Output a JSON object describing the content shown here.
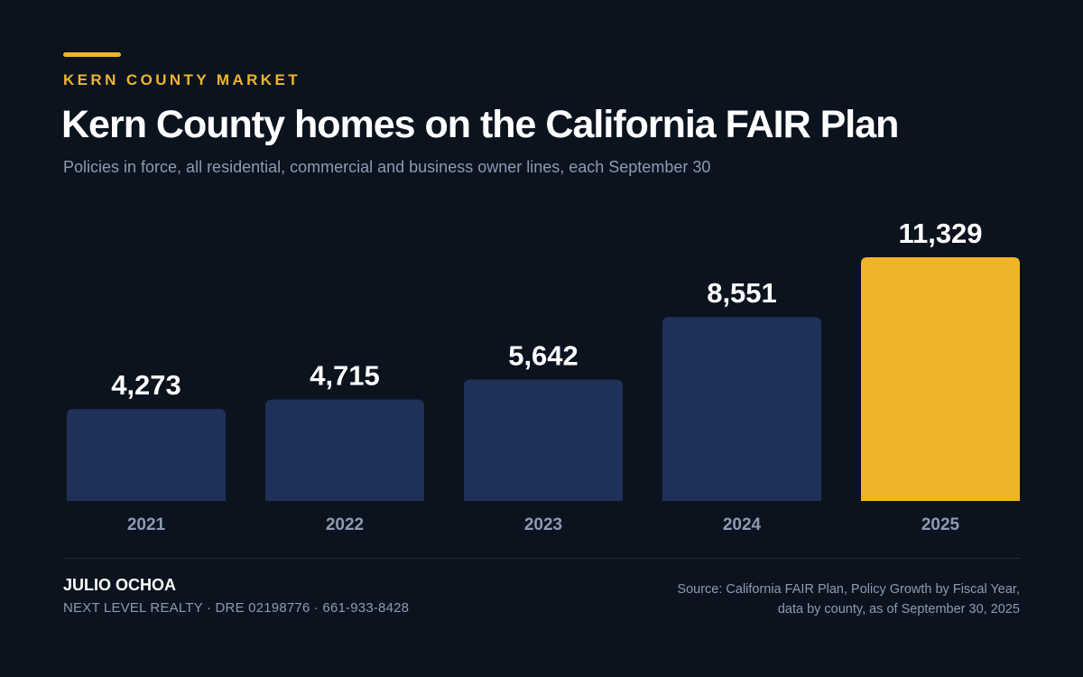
{
  "header": {
    "eyebrow": "KERN COUNTY MARKET",
    "title": "Kern County homes on the California FAIR Plan",
    "subtitle": "Policies in force, all residential, commercial and business owner lines, each September 30"
  },
  "chart_data": {
    "type": "bar",
    "title": "Kern County homes on the California FAIR Plan",
    "subtitle": "Policies in force, all residential, commercial and business owner lines, each September 30",
    "categories": [
      "2021",
      "2022",
      "2023",
      "2024",
      "2025"
    ],
    "values": [
      4273,
      4715,
      5642,
      8551,
      11329
    ],
    "value_labels": [
      "4,273",
      "4,715",
      "5,642",
      "8,551",
      "11,329"
    ],
    "highlight_index": 4,
    "xlabel": "",
    "ylabel": "",
    "grid": false,
    "legend": "none",
    "colors": {
      "bar": "#1f3159",
      "highlight": "#f0b42b",
      "value_label": "#ffffff",
      "category_label": "#8d9ab0"
    }
  },
  "footer": {
    "name": "JULIO OCHOA",
    "details": "NEXT LEVEL REALTY  ·  DRE 02198776  ·  661-933-8428",
    "source_line1": "Source: California FAIR Plan, Policy Growth by Fiscal Year,",
    "source_line2": "data by county, as of September 30, 2025"
  }
}
